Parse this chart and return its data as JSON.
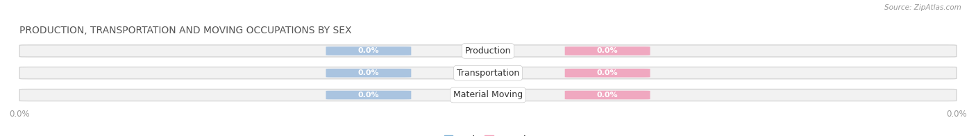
{
  "title": "PRODUCTION, TRANSPORTATION AND MOVING OCCUPATIONS BY SEX",
  "source": "Source: ZipAtlas.com",
  "categories": [
    "Production",
    "Transportation",
    "Material Moving"
  ],
  "male_values": [
    0.0,
    0.0,
    0.0
  ],
  "female_values": [
    0.0,
    0.0,
    0.0
  ],
  "male_color": "#aac4e0",
  "female_color": "#f0a8c0",
  "bar_bg_color": "#f2f2f2",
  "bar_border_color": "#cccccc",
  "male_legend_color": "#7bafd4",
  "female_legend_color": "#f4a0b8",
  "title_color": "#555555",
  "source_color": "#999999",
  "category_text_color": "#333333",
  "axis_label_color": "#999999",
  "figsize": [
    14.06,
    1.96
  ],
  "dpi": 100
}
